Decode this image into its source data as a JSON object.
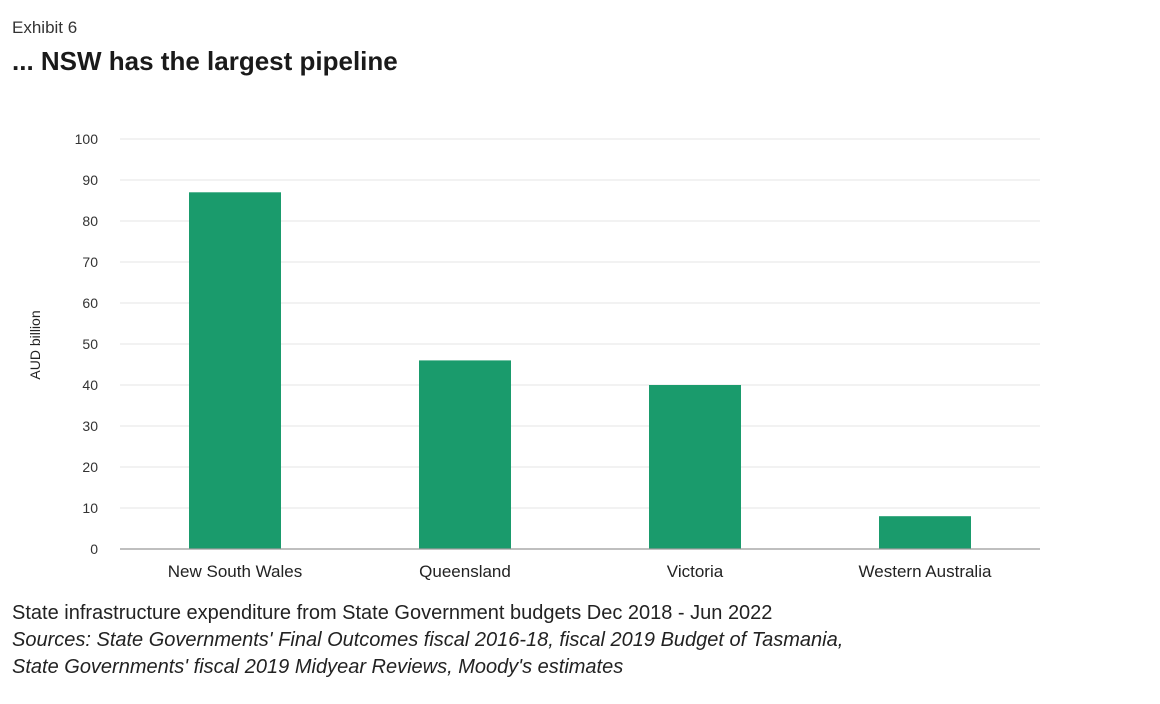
{
  "exhibit_label": "Exhibit 6",
  "title": "... NSW has the largest pipeline",
  "chart_data": {
    "type": "bar",
    "categories": [
      "New South Wales",
      "Queensland",
      "Victoria",
      "Western Australia"
    ],
    "values": [
      87,
      46,
      40,
      8
    ],
    "ylabel": "AUD billion",
    "xlabel": "",
    "ylim": [
      0,
      100
    ],
    "yticks": [
      0,
      10,
      20,
      30,
      40,
      50,
      60,
      70,
      80,
      90,
      100
    ],
    "grid": true,
    "bar_color": "#1a9b6c",
    "grid_color": "#e6e6e6",
    "axis_color": "#999999"
  },
  "footer": {
    "description": "State infrastructure expenditure from State Government budgets Dec 2018 - Jun 2022",
    "sources_line1": "Sources: State Governments' Final Outcomes fiscal 2016-18, fiscal 2019 Budget of Tasmania,",
    "sources_line2": "State Governments' fiscal 2019 Midyear Reviews, Moody's estimates"
  }
}
